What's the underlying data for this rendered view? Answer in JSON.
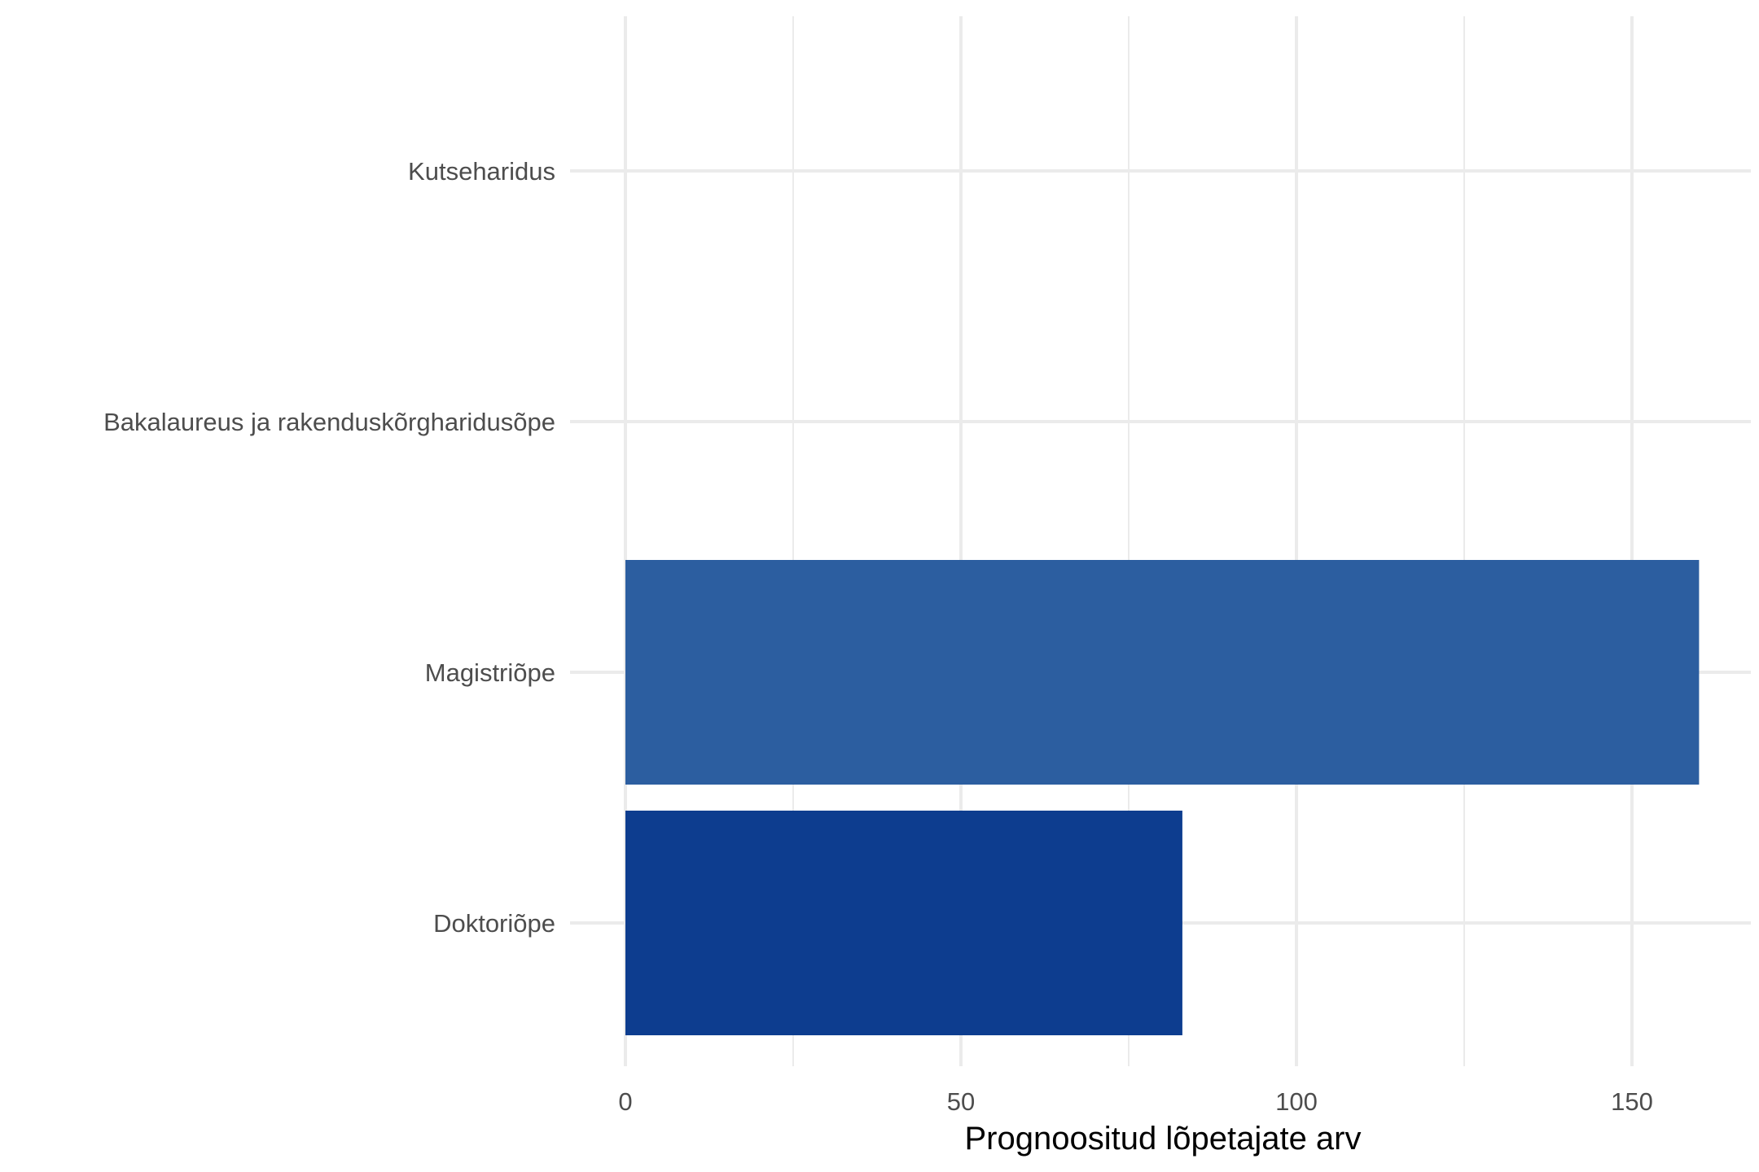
{
  "chart_data": {
    "type": "bar",
    "orientation": "horizontal",
    "categories": [
      "Kutseharidus",
      "Bakalaureus ja rakenduskõrgharidusõpe",
      "Magistriõpe",
      "Doktoriõpe"
    ],
    "values": [
      0,
      0,
      160,
      83
    ],
    "bar_colors": [
      "#2c5ea0",
      "#2c5ea0",
      "#2c5ea0",
      "#0d3d8f"
    ],
    "title": "",
    "xlabel": "Prognoositud lõpetajate arv",
    "ylabel": "",
    "xlim": [
      0,
      168
    ],
    "x_ticks": [
      0,
      50,
      100,
      150
    ],
    "x_tick_labels": [
      "0",
      "50",
      "100",
      "150"
    ],
    "grid": true,
    "legend": "none"
  }
}
